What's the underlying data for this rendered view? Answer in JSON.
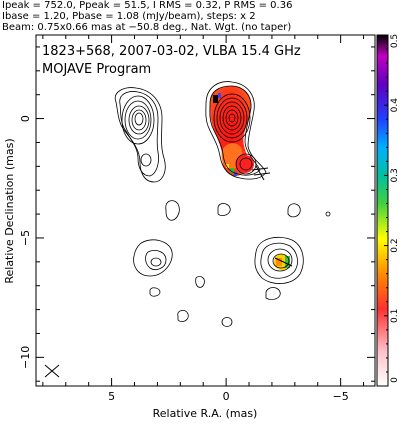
{
  "header": {
    "line1": "Ipeak = 752.0, Ppeak = 51.5, I RMS = 0.32, P RMS = 0.36",
    "line2": "Ibase = 1.20, Pbase = 1.08 (mJy/beam), steps: x 2",
    "line3": "Beam: 0.75x0.66 mas at −50.8 deg., Nat. Wgt. (no taper)"
  },
  "chart_data": {
    "type": "heatmap",
    "title": "1823+568, 2007-03-02, VLBA 15.4 GHz",
    "subtitle": "MOJAVE Program",
    "xlabel": "Relative R.A. (mas)",
    "ylabel": "Relative Declination (mas)",
    "xlim": [
      8.3,
      -6.5
    ],
    "ylim": [
      -11.2,
      3.5
    ],
    "x_ticks": [
      5,
      0,
      -5
    ],
    "x_tick_labels": [
      "5",
      "0",
      "−5"
    ],
    "y_ticks": [
      0,
      -5,
      -10
    ],
    "y_tick_labels": [
      "0",
      "−5",
      "−10"
    ],
    "grid": false,
    "beam": {
      "major_mas": 0.75,
      "minor_mas": 0.66,
      "pa_deg": -50.8
    },
    "colorbar": {
      "range": [
        0,
        0.5
      ],
      "ticks": [
        0,
        0.1,
        0.2,
        0.3,
        0.4,
        0.5
      ],
      "tick_labels": [
        "0",
        "0.1",
        "0.2",
        "0.3",
        "0.4",
        "0.5"
      ],
      "placement": "right"
    }
  }
}
